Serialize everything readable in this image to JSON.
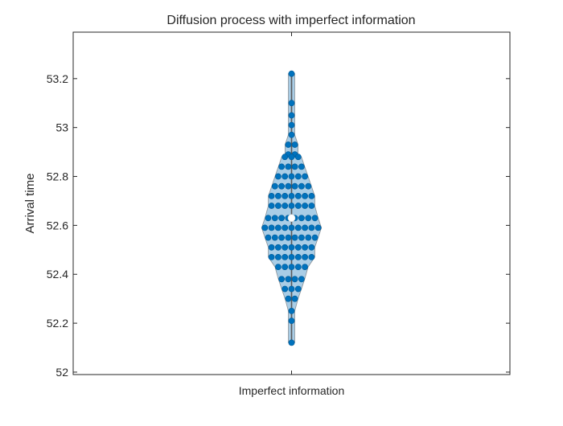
{
  "chart_data": {
    "type": "scatter",
    "title": "Diffusion process with imperfect information",
    "xlabel": "",
    "ylabel": "Arrival time",
    "categories": [
      "Imperfect information"
    ],
    "ylim": [
      51.99,
      53.39
    ],
    "yticks": [
      52,
      52.2,
      52.4,
      52.6,
      52.8,
      53,
      53.2
    ],
    "ytick_labels": [
      "52",
      "52.2",
      "52.4",
      "52.6",
      "52.8",
      "53",
      "53.2"
    ],
    "grid": false,
    "legend": "none",
    "median": 52.63,
    "whisker": [
      52.12,
      53.22
    ],
    "rows": [
      {
        "y": 53.22,
        "n": 1
      },
      {
        "y": 53.1,
        "n": 1
      },
      {
        "y": 53.05,
        "n": 1
      },
      {
        "y": 53.01,
        "n": 1
      },
      {
        "y": 52.97,
        "n": 1
      },
      {
        "y": 52.93,
        "n": 2
      },
      {
        "y": 52.89,
        "n": 2
      },
      {
        "y": 52.88,
        "n": 3
      },
      {
        "y": 52.84,
        "n": 4
      },
      {
        "y": 52.8,
        "n": 5
      },
      {
        "y": 52.76,
        "n": 6
      },
      {
        "y": 52.72,
        "n": 7
      },
      {
        "y": 52.68,
        "n": 7
      },
      {
        "y": 52.63,
        "n": 8
      },
      {
        "y": 52.59,
        "n": 9
      },
      {
        "y": 52.55,
        "n": 8
      },
      {
        "y": 52.51,
        "n": 7
      },
      {
        "y": 52.47,
        "n": 7
      },
      {
        "y": 52.43,
        "n": 5
      },
      {
        "y": 52.38,
        "n": 4
      },
      {
        "y": 52.34,
        "n": 3
      },
      {
        "y": 52.3,
        "n": 2
      },
      {
        "y": 52.25,
        "n": 1
      },
      {
        "y": 52.21,
        "n": 1
      },
      {
        "y": 52.12,
        "n": 1
      }
    ],
    "colors": {
      "marker": "#0072bd",
      "fill": "#a9cde6",
      "outline": "#5a5a5a",
      "median_marker": "#ffffff",
      "axes": "#262626"
    }
  }
}
